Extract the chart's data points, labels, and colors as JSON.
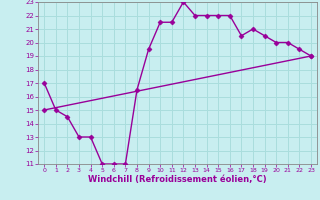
{
  "series1_x": [
    0,
    1,
    2,
    3,
    4,
    5,
    6,
    7,
    8,
    9,
    10,
    11,
    12,
    13,
    14,
    15,
    16,
    17,
    18,
    19,
    20,
    21,
    22,
    23
  ],
  "series1_y": [
    17.0,
    15.0,
    14.5,
    13.0,
    13.0,
    11.0,
    11.0,
    11.0,
    16.5,
    19.5,
    21.5,
    21.5,
    23.0,
    22.0,
    22.0,
    22.0,
    22.0,
    20.5,
    21.0,
    20.5,
    20.0,
    20.0,
    19.5,
    19.0
  ],
  "series2_x": [
    0,
    23
  ],
  "series2_y": [
    15.0,
    19.0
  ],
  "line_color": "#990099",
  "bg_color": "#c8eef0",
  "grid_color": "#aadddd",
  "xlabel": "Windchill (Refroidissement éolien,°C)",
  "xlim": [
    -0.5,
    23.5
  ],
  "ylim": [
    11,
    23
  ],
  "xticks": [
    0,
    1,
    2,
    3,
    4,
    5,
    6,
    7,
    8,
    9,
    10,
    11,
    12,
    13,
    14,
    15,
    16,
    17,
    18,
    19,
    20,
    21,
    22,
    23
  ],
  "yticks": [
    11,
    12,
    13,
    14,
    15,
    16,
    17,
    18,
    19,
    20,
    21,
    22,
    23
  ],
  "marker": "D",
  "markersize": 2.5,
  "linewidth": 1.0
}
